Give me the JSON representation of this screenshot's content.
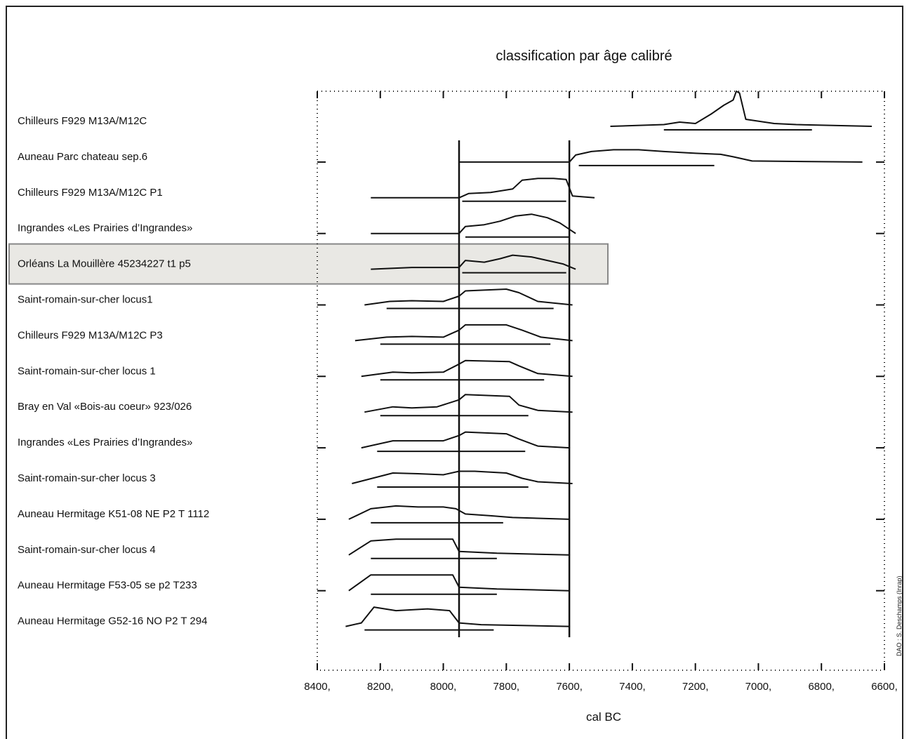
{
  "chart_data": {
    "type": "line",
    "title": "classification par âge calibré",
    "xlabel": "cal BC",
    "ylabel": "",
    "x_reversed": true,
    "xlim": [
      8400,
      6600
    ],
    "x_ticks": [
      {
        "value": 8400,
        "label": "8400,"
      },
      {
        "value": 8200,
        "label": "8200,"
      },
      {
        "value": 8000,
        "label": "8000,"
      },
      {
        "value": 7800,
        "label": "7800,"
      },
      {
        "value": 7600,
        "label": "7600,"
      },
      {
        "value": 7400,
        "label": "7400,"
      },
      {
        "value": 7200,
        "label": "7200,"
      },
      {
        "value": 7000,
        "label": "7000,"
      },
      {
        "value": 6800,
        "label": "6800,"
      },
      {
        "value": 6600,
        "label": "6600,"
      }
    ],
    "reference_lines": [
      7950,
      7600
    ],
    "highlighted_row": 4,
    "series": [
      {
        "name": "Chilleurs F929 M13A/M12C",
        "range": [
          7470,
          6640
        ],
        "profile": [
          [
            7470,
            0
          ],
          [
            7300,
            0.05
          ],
          [
            7250,
            0.12
          ],
          [
            7200,
            0.08
          ],
          [
            7150,
            0.35
          ],
          [
            7110,
            0.6
          ],
          [
            7080,
            0.75
          ],
          [
            7070,
            1.0
          ],
          [
            7060,
            0.95
          ],
          [
            7040,
            0.2
          ],
          [
            6950,
            0.08
          ],
          [
            6880,
            0.05
          ],
          [
            6640,
            0
          ]
        ],
        "hpd_lines": [
          [
            7300,
            6830
          ]
        ]
      },
      {
        "name": "Auneau Parc chateau sep.6",
        "range": [
          7950,
          6670
        ],
        "profile": [
          [
            7950,
            0
          ],
          [
            7600,
            0
          ],
          [
            7580,
            0.2
          ],
          [
            7530,
            0.3
          ],
          [
            7460,
            0.35
          ],
          [
            7380,
            0.35
          ],
          [
            7300,
            0.3
          ],
          [
            7200,
            0.25
          ],
          [
            7120,
            0.22
          ],
          [
            7080,
            0.15
          ],
          [
            7020,
            0.03
          ],
          [
            6670,
            0
          ]
        ],
        "hpd_lines": [
          [
            7570,
            7140
          ]
        ]
      },
      {
        "name": "Chilleurs F929 M13A/M12C P1",
        "range": [
          8230,
          7520
        ],
        "profile": [
          [
            8230,
            0
          ],
          [
            7950,
            0
          ],
          [
            7920,
            0.12
          ],
          [
            7850,
            0.15
          ],
          [
            7780,
            0.25
          ],
          [
            7750,
            0.5
          ],
          [
            7700,
            0.55
          ],
          [
            7650,
            0.55
          ],
          [
            7610,
            0.52
          ],
          [
            7590,
            0.05
          ],
          [
            7520,
            0
          ]
        ],
        "hpd_lines": [
          [
            7940,
            7610
          ]
        ]
      },
      {
        "name": "Ingrandes «Les Prairies d’Ingrandes»",
        "range": [
          8230,
          7580
        ],
        "profile": [
          [
            8230,
            0
          ],
          [
            7950,
            0
          ],
          [
            7930,
            0.2
          ],
          [
            7870,
            0.25
          ],
          [
            7820,
            0.35
          ],
          [
            7770,
            0.5
          ],
          [
            7720,
            0.55
          ],
          [
            7670,
            0.45
          ],
          [
            7630,
            0.3
          ],
          [
            7580,
            0
          ]
        ],
        "hpd_lines": [
          [
            7930,
            7600
          ]
        ]
      },
      {
        "name": "Orléans  La Mouillère  45234227 t1 p5",
        "range": [
          8230,
          7580
        ],
        "profile": [
          [
            8230,
            0
          ],
          [
            8100,
            0.05
          ],
          [
            7950,
            0.05
          ],
          [
            7930,
            0.25
          ],
          [
            7870,
            0.2
          ],
          [
            7820,
            0.3
          ],
          [
            7780,
            0.4
          ],
          [
            7720,
            0.35
          ],
          [
            7670,
            0.25
          ],
          [
            7620,
            0.15
          ],
          [
            7580,
            0
          ]
        ],
        "hpd_lines": [
          [
            7940,
            7610
          ]
        ]
      },
      {
        "name": "Saint-romain-sur-cher locus1",
        "range": [
          8250,
          7590
        ],
        "profile": [
          [
            8250,
            0
          ],
          [
            8170,
            0.1
          ],
          [
            8100,
            0.12
          ],
          [
            8000,
            0.1
          ],
          [
            7950,
            0.25
          ],
          [
            7930,
            0.4
          ],
          [
            7800,
            0.45
          ],
          [
            7760,
            0.35
          ],
          [
            7700,
            0.1
          ],
          [
            7590,
            0
          ]
        ],
        "hpd_lines": [
          [
            8180,
            7650
          ]
        ]
      },
      {
        "name": " Chilleurs F929 M13A/M12C P3",
        "range": [
          8280,
          7590
        ],
        "profile": [
          [
            8280,
            0
          ],
          [
            8180,
            0.1
          ],
          [
            8100,
            0.12
          ],
          [
            8000,
            0.1
          ],
          [
            7950,
            0.3
          ],
          [
            7930,
            0.45
          ],
          [
            7800,
            0.45
          ],
          [
            7750,
            0.3
          ],
          [
            7690,
            0.1
          ],
          [
            7590,
            0
          ]
        ],
        "hpd_lines": [
          [
            8200,
            7660
          ]
        ]
      },
      {
        "name": "Saint-romain-sur-cher locus 1",
        "range": [
          8260,
          7590
        ],
        "profile": [
          [
            8260,
            0
          ],
          [
            8160,
            0.12
          ],
          [
            8100,
            0.1
          ],
          [
            8000,
            0.12
          ],
          [
            7950,
            0.35
          ],
          [
            7930,
            0.45
          ],
          [
            7790,
            0.42
          ],
          [
            7760,
            0.3
          ],
          [
            7700,
            0.08
          ],
          [
            7590,
            0
          ]
        ],
        "hpd_lines": [
          [
            8200,
            7680
          ]
        ]
      },
      {
        "name": "Bray en Val «Bois-au coeur» 923/026",
        "range": [
          8250,
          7590
        ],
        "profile": [
          [
            8250,
            0
          ],
          [
            8160,
            0.15
          ],
          [
            8100,
            0.12
          ],
          [
            8020,
            0.15
          ],
          [
            7950,
            0.35
          ],
          [
            7930,
            0.5
          ],
          [
            7790,
            0.45
          ],
          [
            7760,
            0.2
          ],
          [
            7700,
            0.05
          ],
          [
            7590,
            0
          ]
        ],
        "hpd_lines": [
          [
            8200,
            7730
          ]
        ]
      },
      {
        "name": "Ingrandes «Les Prairies d’Ingrandes»",
        "range": [
          8260,
          7600
        ],
        "profile": [
          [
            8260,
            0
          ],
          [
            8160,
            0.2
          ],
          [
            8080,
            0.2
          ],
          [
            8000,
            0.2
          ],
          [
            7950,
            0.35
          ],
          [
            7930,
            0.45
          ],
          [
            7800,
            0.4
          ],
          [
            7760,
            0.25
          ],
          [
            7700,
            0.05
          ],
          [
            7600,
            0
          ]
        ],
        "hpd_lines": [
          [
            8210,
            7740
          ]
        ]
      },
      {
        "name": "Saint-romain-sur-cher locus 3",
        "range": [
          8290,
          7590
        ],
        "profile": [
          [
            8290,
            0
          ],
          [
            8160,
            0.3
          ],
          [
            8080,
            0.28
          ],
          [
            8000,
            0.25
          ],
          [
            7950,
            0.35
          ],
          [
            7900,
            0.35
          ],
          [
            7800,
            0.3
          ],
          [
            7750,
            0.15
          ],
          [
            7700,
            0.05
          ],
          [
            7590,
            0
          ]
        ],
        "hpd_lines": [
          [
            8210,
            7730
          ]
        ]
      },
      {
        "name": "Auneau Hermitage K51-08 NE P2 T 1112",
        "range": [
          8300,
          7600
        ],
        "profile": [
          [
            8300,
            0
          ],
          [
            8230,
            0.3
          ],
          [
            8150,
            0.38
          ],
          [
            8080,
            0.35
          ],
          [
            8000,
            0.35
          ],
          [
            7960,
            0.3
          ],
          [
            7930,
            0.15
          ],
          [
            7850,
            0.1
          ],
          [
            7780,
            0.05
          ],
          [
            7600,
            0
          ]
        ],
        "hpd_lines": [
          [
            8230,
            7810
          ]
        ]
      },
      {
        "name": "Saint-romain-sur-cher locus 4",
        "range": [
          8300,
          7600
        ],
        "profile": [
          [
            8300,
            0
          ],
          [
            8230,
            0.4
          ],
          [
            8150,
            0.45
          ],
          [
            8050,
            0.45
          ],
          [
            7970,
            0.45
          ],
          [
            7950,
            0.1
          ],
          [
            7830,
            0.05
          ],
          [
            7600,
            0
          ]
        ],
        "hpd_lines": [
          [
            8230,
            7830
          ]
        ]
      },
      {
        "name": " Auneau Hermitage F53-05 se p2 T233",
        "range": [
          8300,
          7600
        ],
        "profile": [
          [
            8300,
            0
          ],
          [
            8230,
            0.45
          ],
          [
            8150,
            0.45
          ],
          [
            8050,
            0.45
          ],
          [
            7970,
            0.45
          ],
          [
            7950,
            0.1
          ],
          [
            7830,
            0.05
          ],
          [
            7600,
            0
          ]
        ],
        "hpd_lines": [
          [
            8230,
            7830
          ]
        ]
      },
      {
        "name": "Auneau Hermitage G52-16 NO P2 T 294",
        "range": [
          8310,
          7600
        ],
        "profile": [
          [
            8310,
            0
          ],
          [
            8260,
            0.1
          ],
          [
            8220,
            0.55
          ],
          [
            8150,
            0.45
          ],
          [
            8050,
            0.5
          ],
          [
            7980,
            0.45
          ],
          [
            7950,
            0.1
          ],
          [
            7880,
            0.05
          ],
          [
            7600,
            0
          ]
        ],
        "hpd_lines": [
          [
            8250,
            7840
          ]
        ]
      }
    ]
  },
  "credit": "DAO : S. Deschamps (Inrap)"
}
